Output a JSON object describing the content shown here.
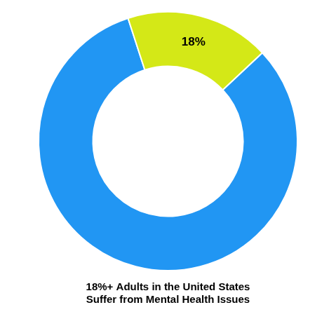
{
  "chart_data": {
    "type": "doughnut",
    "title": [
      "18%+ Adults in the United States",
      "Suffer from Mental Health Issues"
    ],
    "values": [
      82,
      18
    ],
    "colors": [
      "#2196F3",
      "#D4E817"
    ],
    "data_labels": true,
    "value_labels": [
      null,
      "18%"
    ]
  }
}
